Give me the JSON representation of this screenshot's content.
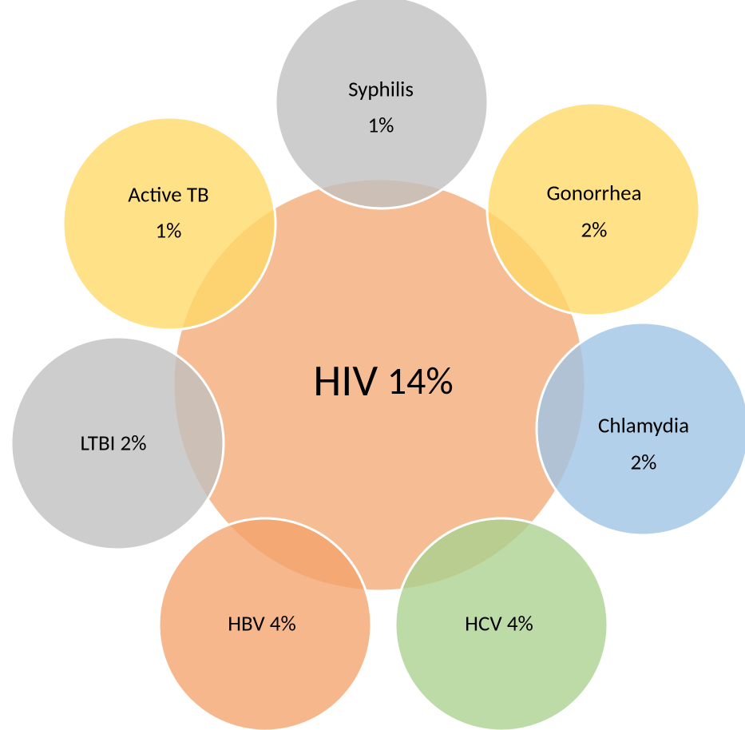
{
  "center": {
    "name": "HIV",
    "value": "14%"
  },
  "nodes": [
    {
      "lines": [
        "Syphilis",
        "1%"
      ]
    },
    {
      "lines": [
        "Gonorrhea",
        "2%"
      ]
    },
    {
      "lines": [
        "Chlamydia",
        "2%"
      ]
    },
    {
      "lines": [
        "HCV 4%"
      ]
    },
    {
      "lines": [
        "HBV 4%"
      ]
    },
    {
      "lines": [
        "LTBI 2%"
      ]
    },
    {
      "lines": [
        "Active TB",
        "1%"
      ]
    }
  ]
}
